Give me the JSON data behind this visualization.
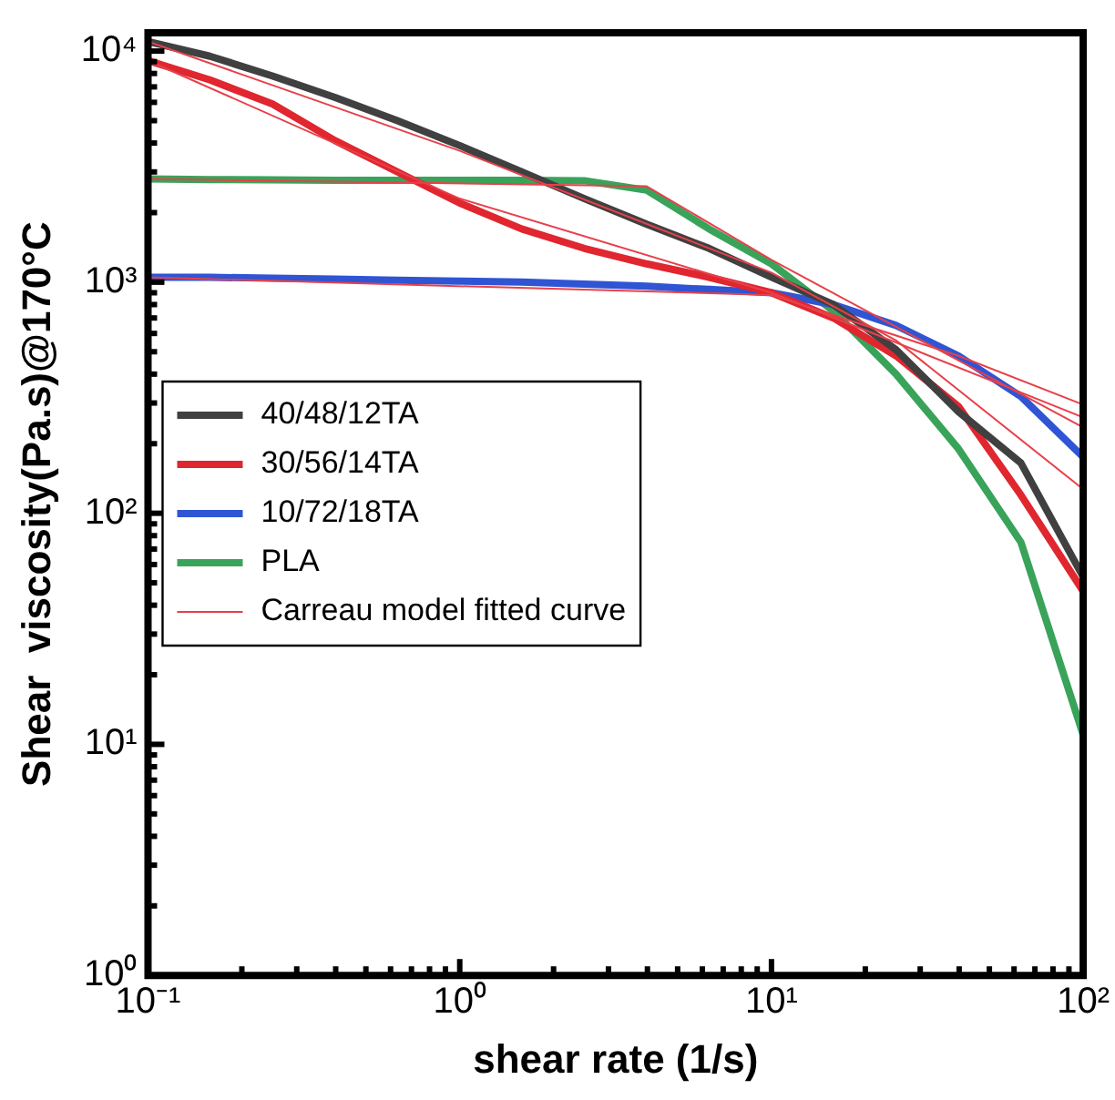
{
  "chart_data": {
    "type": "line",
    "xlabel": "shear rate (1/s)",
    "ylabel": "Shear  viscosity(Pa.s)@170°C",
    "log": "xy",
    "grid": false,
    "legend": "left",
    "marker": "none",
    "line_style": "solid",
    "xlim": [
      0.1,
      100
    ],
    "ylim": [
      1,
      12000
    ],
    "xticks": [
      {
        "value": 0.1,
        "label": "10⁻¹"
      },
      {
        "value": 0.2,
        "label": null
      },
      {
        "value": 0.3,
        "label": null
      },
      {
        "value": 0.4,
        "label": null
      },
      {
        "value": 0.5,
        "label": null
      },
      {
        "value": 0.6,
        "label": null
      },
      {
        "value": 0.7,
        "label": null
      },
      {
        "value": 0.8,
        "label": null
      },
      {
        "value": 0.9,
        "label": null
      },
      {
        "value": 1,
        "label": "10⁰"
      },
      {
        "value": 2,
        "label": null
      },
      {
        "value": 3,
        "label": null
      },
      {
        "value": 4,
        "label": null
      },
      {
        "value": 5,
        "label": null
      },
      {
        "value": 6,
        "label": null
      },
      {
        "value": 7,
        "label": null
      },
      {
        "value": 8,
        "label": null
      },
      {
        "value": 9,
        "label": null
      },
      {
        "value": 10,
        "label": "10¹"
      },
      {
        "value": 20,
        "label": null
      },
      {
        "value": 30,
        "label": null
      },
      {
        "value": 40,
        "label": null
      },
      {
        "value": 50,
        "label": null
      },
      {
        "value": 60,
        "label": null
      },
      {
        "value": 70,
        "label": null
      },
      {
        "value": 80,
        "label": null
      },
      {
        "value": 90,
        "label": null
      },
      {
        "value": 100,
        "label": "10²"
      }
    ],
    "yticks": [
      {
        "value": 1,
        "label": "10⁰"
      },
      {
        "value": 2,
        "label": null
      },
      {
        "value": 3,
        "label": null
      },
      {
        "value": 4,
        "label": null
      },
      {
        "value": 5,
        "label": null
      },
      {
        "value": 6,
        "label": null
      },
      {
        "value": 7,
        "label": null
      },
      {
        "value": 8,
        "label": null
      },
      {
        "value": 9,
        "label": null
      },
      {
        "value": 10,
        "label": "10¹"
      },
      {
        "value": 20,
        "label": null
      },
      {
        "value": 30,
        "label": null
      },
      {
        "value": 40,
        "label": null
      },
      {
        "value": 50,
        "label": null
      },
      {
        "value": 60,
        "label": null
      },
      {
        "value": 70,
        "label": null
      },
      {
        "value": 80,
        "label": null
      },
      {
        "value": 90,
        "label": null
      },
      {
        "value": 100,
        "label": "10²"
      },
      {
        "value": 200,
        "label": null
      },
      {
        "value": 300,
        "label": null
      },
      {
        "value": 400,
        "label": null
      },
      {
        "value": 500,
        "label": null
      },
      {
        "value": 600,
        "label": null
      },
      {
        "value": 700,
        "label": null
      },
      {
        "value": 800,
        "label": null
      },
      {
        "value": 900,
        "label": null
      },
      {
        "value": 1000,
        "label": "10³"
      },
      {
        "value": 2000,
        "label": null
      },
      {
        "value": 3000,
        "label": null
      },
      {
        "value": 4000,
        "label": null
      },
      {
        "value": 5000,
        "label": null
      },
      {
        "value": 6000,
        "label": null
      },
      {
        "value": 7000,
        "label": null
      },
      {
        "value": 8000,
        "label": null
      },
      {
        "value": 9000,
        "label": null
      },
      {
        "value": 10000,
        "label": "10⁴"
      }
    ],
    "x": [
      0.1,
      0.158,
      0.251,
      0.398,
      0.631,
      1,
      1.58,
      2.51,
      3.98,
      6.31,
      10,
      15.8,
      25.1,
      39.8,
      63.1,
      100
    ],
    "series": [
      {
        "name": "40/48/12TA",
        "color": "#404040",
        "values": [
          11000,
          9500,
          7800,
          6300,
          5000,
          3900,
          3000,
          2300,
          1780,
          1400,
          1050,
          800,
          510,
          275,
          165,
          53
        ]
      },
      {
        "name": "30/56/14TA",
        "color": "#e0262f",
        "values": [
          9100,
          7500,
          5900,
          4100,
          3000,
          2200,
          1700,
          1400,
          1200,
          1050,
          900,
          700,
          480,
          290,
          120,
          46
        ]
      },
      {
        "name": "10/72/18TA",
        "color": "#2f55d4",
        "values": [
          1050,
          1050,
          1040,
          1030,
          1020,
          1010,
          1000,
          980,
          960,
          930,
          900,
          800,
          650,
          480,
          320,
          175
        ]
      },
      {
        "name": "PLA",
        "color": "#3aa35a",
        "values": [
          2800,
          2780,
          2770,
          2760,
          2760,
          2760,
          2760,
          2750,
          2500,
          1700,
          1200,
          750,
          400,
          190,
          75,
          11
        ]
      },
      {
        "name": "Carreau model fitted curve",
        "color": "#e8404a",
        "x": [
          0.1,
          1,
          10,
          25.1,
          100
        ],
        "values": [
          11000,
          3700,
          1100,
          560,
          127
        ]
      },
      {
        "color": "#e8404a",
        "x": [
          0.1,
          1,
          10,
          100
        ],
        "values": [
          9100,
          2300,
          900,
          260
        ]
      },
      {
        "color": "#e8404a",
        "x": [
          0.1,
          10,
          39.8,
          100
        ],
        "values": [
          1050,
          880,
          480,
          295
        ]
      },
      {
        "color": "#e8404a",
        "x": [
          0.1,
          3.98,
          10,
          100
        ],
        "values": [
          2800,
          2600,
          1250,
          235
        ]
      }
    ]
  }
}
